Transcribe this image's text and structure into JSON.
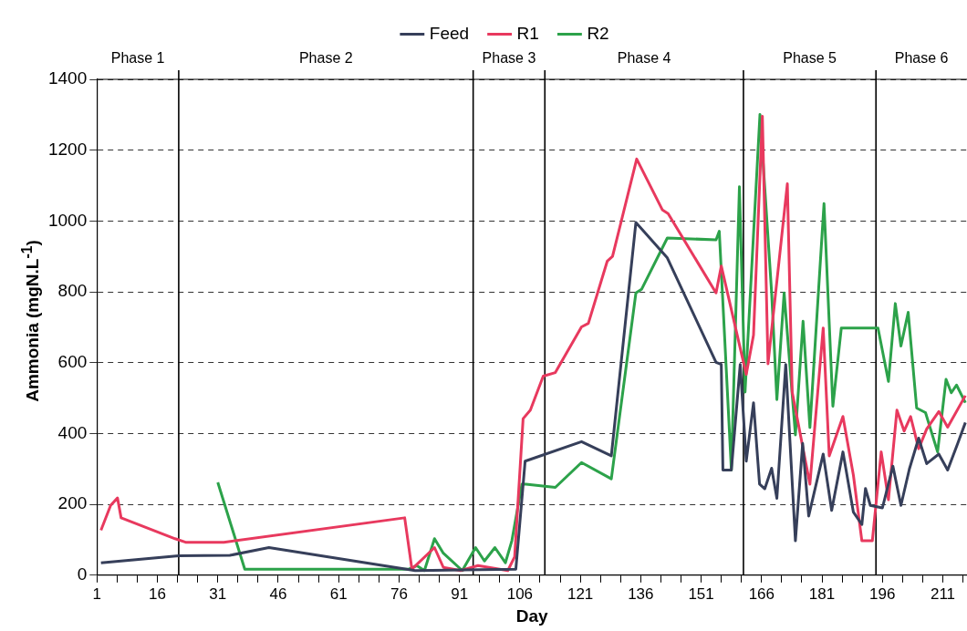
{
  "chart_data": {
    "type": "line",
    "xlabel": "Day",
    "ylabel": "Ammonia (mgN.L$^{-1}$)",
    "xlim": [
      1,
      217
    ],
    "ylim": [
      0,
      1400
    ],
    "xticks": [
      1,
      {
        "value": 6,
        "label": null
      },
      {
        "value": 11,
        "label": null
      },
      16,
      {
        "value": 21,
        "label": null
      },
      {
        "value": 26,
        "label": null
      },
      31,
      {
        "value": 36,
        "label": null
      },
      {
        "value": 41,
        "label": null
      },
      46,
      {
        "value": 51,
        "label": null
      },
      {
        "value": 56,
        "label": null
      },
      61,
      {
        "value": 66,
        "label": null
      },
      {
        "value": 71,
        "label": null
      },
      76,
      {
        "value": 81,
        "label": null
      },
      {
        "value": 86,
        "label": null
      },
      91,
      {
        "value": 96,
        "label": null
      },
      {
        "value": 101,
        "label": null
      },
      106,
      {
        "value": 111,
        "label": null
      },
      {
        "value": 116,
        "label": null
      },
      121,
      {
        "value": 126,
        "label": null
      },
      {
        "value": 131,
        "label": null
      },
      136,
      {
        "value": 141,
        "label": null
      },
      {
        "value": 146,
        "label": null
      },
      151,
      {
        "value": 156,
        "label": null
      },
      {
        "value": 161,
        "label": null
      },
      166,
      {
        "value": 171,
        "label": null
      },
      {
        "value": 176,
        "label": null
      },
      181,
      {
        "value": 186,
        "label": null
      },
      {
        "value": 191,
        "label": null
      },
      196,
      {
        "value": 201,
        "label": null
      },
      {
        "value": 206,
        "label": null
      },
      211,
      {
        "value": 216,
        "label": null
      }
    ],
    "yticks": [
      0,
      200,
      400,
      600,
      800,
      1000,
      1200,
      1400
    ],
    "grid": "y",
    "legend": "top",
    "marker": "none",
    "line_style": "solid",
    "series": [
      {
        "name": "Feed",
        "color": "#363f5a",
        "x": [
          2,
          21.3,
          34,
          43.7,
          80,
          105,
          107.3,
          121.3,
          128.7,
          134.8,
          142.6,
          154.7,
          156,
          156.4,
          158.5,
          160.7,
          162.2,
          164,
          165.5,
          166.8,
          168.5,
          169.8,
          172,
          174.4,
          176.2,
          177.7,
          181.3,
          183.4,
          186.2,
          188.8,
          190.9,
          191.8,
          193,
          196,
          198.6,
          200.6,
          202.7,
          205,
          207,
          210,
          212.2,
          214.7,
          216.6
        ],
        "values": [
          35,
          55,
          56,
          78,
          13,
          17,
          322,
          377,
          337,
          996,
          896,
          601,
          595,
          297,
          297,
          595,
          322,
          487,
          257,
          244,
          302,
          217,
          595,
          97,
          372,
          167,
          342,
          183,
          348,
          178,
          143,
          245,
          197,
          190,
          308,
          197,
          300,
          387,
          315,
          342,
          297,
          372,
          431
        ]
      },
      {
        "name": "R1",
        "color": "#e8395e",
        "x": [
          2,
          4.4,
          6.1,
          7,
          20.4,
          23,
          32.5,
          77.4,
          79.2,
          84.8,
          87,
          91.3,
          95.6,
          103,
          104.7,
          106.8,
          108.6,
          111.8,
          114.8,
          121.3,
          123,
          127.7,
          129,
          135,
          141.4,
          142.8,
          154.7,
          156,
          162.2,
          164,
          166.2,
          167.6,
          172.4,
          173.6,
          178,
          181.3,
          182.8,
          186.2,
          188.8,
          190.9,
          193.5,
          195.7,
          197.5,
          199.6,
          201.4,
          203,
          205,
          207,
          210,
          212.2,
          216.6
        ],
        "values": [
          127,
          197,
          218,
          162,
          103,
          93,
          93,
          162,
          17,
          78,
          22,
          13,
          27,
          13,
          52,
          442,
          466,
          562,
          572,
          701,
          711,
          887,
          900,
          1175,
          1031,
          1021,
          797,
          873,
          567,
          678,
          1296,
          597,
          1105,
          517,
          257,
          698,
          337,
          448,
          282,
          97,
          97,
          348,
          213,
          466,
          407,
          448,
          357,
          413,
          462,
          418,
          507
        ]
      },
      {
        "name": "R2",
        "color": "#2ca24a",
        "x": [
          31,
          37.7,
          78.4,
          80.4,
          82.3,
          84.8,
          87,
          91.7,
          95,
          97.2,
          99.8,
          102.4,
          104,
          106.5,
          107.5,
          114.8,
          121.3,
          128.7,
          134.8,
          136.2,
          142.6,
          154.7,
          155.5,
          158.5,
          160.5,
          161.9,
          165.6,
          168.5,
          169.8,
          171.6,
          174.4,
          176.3,
          178,
          181.5,
          183.7,
          185.8,
          194.9,
          197.5,
          199.2,
          200.6,
          202.4,
          204.5,
          206.7,
          209.7,
          211.8,
          213.1,
          214.4,
          216.6
        ],
        "values": [
          262,
          17,
          17,
          27,
          13,
          103,
          62,
          13,
          78,
          40,
          78,
          35,
          97,
          257,
          257,
          248,
          318,
          272,
          797,
          807,
          952,
          947,
          971,
          297,
          1097,
          517,
          1301,
          797,
          496,
          797,
          396,
          717,
          417,
          1049,
          477,
          698,
          698,
          547,
          767,
          647,
          742,
          472,
          459,
          348,
          553,
          515,
          537,
          487
        ]
      }
    ],
    "ref_lines": [
      {
        "axis": "x",
        "value": 21.3,
        "color": "#000000"
      },
      {
        "axis": "x",
        "value": 94.4,
        "color": "#000000"
      },
      {
        "axis": "x",
        "value": 112.2,
        "color": "#000000"
      },
      {
        "axis": "x",
        "value": 161.5,
        "color": "#000000"
      },
      {
        "axis": "x",
        "value": 194.4,
        "color": "#000000"
      }
    ],
    "annotations": [
      "Phase 1",
      "Phase 2",
      "Phase 3",
      "Phase 4",
      "Phase 5",
      "Phase 6"
    ]
  }
}
